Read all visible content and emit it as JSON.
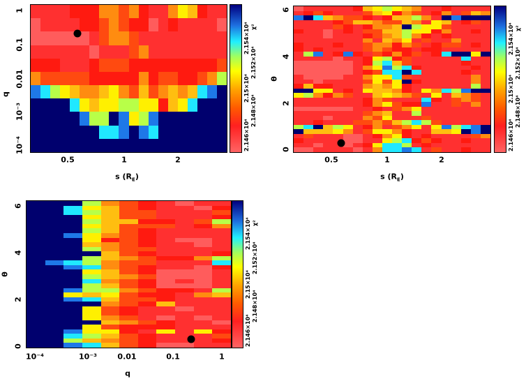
{
  "palette": {
    "0": "#ff5c5c",
    "1": "#ff3030",
    "2": "#ff1a10",
    "3": "#ff4a10",
    "4": "#ff8c10",
    "5": "#ffbe10",
    "6": "#fff000",
    "7": "#b8ff48",
    "8": "#20e8ff",
    "9": "#1e78e8",
    "a": "#00006e"
  },
  "colorbar": {
    "labels": [
      "2.146×10⁴",
      "2.148×10⁴",
      "2.15×10⁴",
      "2.152×10⁴",
      "2.154×10⁴"
    ],
    "title": "χ²"
  },
  "chart_data": [
    {
      "type": "heatmap",
      "xlabel": "s (R",
      "xlabel_sub": "E",
      "xlabel_close": ")",
      "ylabel": "q",
      "xticks": [
        "0.5",
        "1",
        "2"
      ],
      "yticks": [
        "1",
        "0.1",
        "0.01",
        "10⁻³",
        "10⁻⁴"
      ],
      "best_fit": {
        "s": 0.57,
        "q": 0.22
      },
      "level_scale": "0 = lowest χ² (light red) … a = highest χ² (dark blue)",
      "rows": [
        "11112224434211465211",
        "01111223432201211110",
        "00000013443111111111",
        "11111101113411111111",
        "22211123332222222223",
        "43333322222423322347",
        "9876544564353454589a",
        "aaaa8656677662568aaa",
        "aaaaa977a9679aaaaaaa",
        "aaaaaaa889a98aaaaaaa",
        "aaaaaaaaaaaaaaaaaaaa"
      ]
    },
    {
      "type": "heatmap",
      "xlabel": "s (R",
      "xlabel_sub": "E",
      "xlabel_close": ")",
      "ylabel": "θ",
      "xticks": [
        "0.5",
        "1",
        "2"
      ],
      "yticks": [
        "6",
        "4",
        "2",
        "0"
      ],
      "best_fit": {
        "s": 0.57,
        "theta": 0.3
      },
      "rows": [
        "01111125676541121111",
        "12321113562431241354",
        "9a8543321255741a9aaa",
        "11112355433541651231",
        "11113212445a76631111",
        "21101213355766241121",
        "11101112345742121111",
        "11111114154613114111",
        "21112113442431233121",
        "21211113432212211111",
        "1791292132423128aa6a",
        "11110112672311111811",
        "00000012785311111211",
        "00000014697821111121",
        "00000012388a81111211",
        "10000114668311111141",
        "11011113636a21111141",
        "25221114546211111171",
        "aa6612165542164879aa",
        "67424311565431615431",
        "11111112431118213431",
        "11111112463229113141",
        "00000011213461111111",
        "11111113451171111111",
        "11101114361113111111",
        "11211133435787311111",
        "78a5761241346169789a",
        "a5556413664211556a9a",
        "13111001246212111134",
        "21111001167823211211",
        "11011012688712111111",
        "00111101488981311211"
      ]
    },
    {
      "type": "heatmap",
      "xlabel": "q",
      "ylabel": "θ",
      "xticks": [
        "10⁻⁴",
        "10⁻³",
        "0.01",
        "0.1",
        "1"
      ],
      "yticks": [
        "6",
        "4",
        "2",
        "0"
      ],
      "best_fit": {
        "q": 0.22,
        "theta": 0.3
      },
      "rows": [
        "aaa74321011",
        "aa865321102",
        "aa875331113",
        "aaa65331112",
        "aaa75522137",
        "aaa65333124",
        "aaa75321111",
        "aa964321111",
        "aaa62321001",
        "aaa54321101",
        "aaa74331111",
        "aaaa5321112",
        "aaa75432247",
        "a9874331118",
        "aa984321102",
        "aaa65320001",
        "aaa75430001",
        "aaa84320101",
        "aaa75320001",
        "aa977432217",
        "aa656322145",
        "aa985332111",
        "aaaa4325111",
        "aaa63211011",
        "aaa63211111",
        "aaa64310101",
        "aaaa5432110",
        "aaa63222111",
        "aa966216162",
        "aa875321113",
        "aa754321112",
        "aa985320011"
      ]
    }
  ]
}
